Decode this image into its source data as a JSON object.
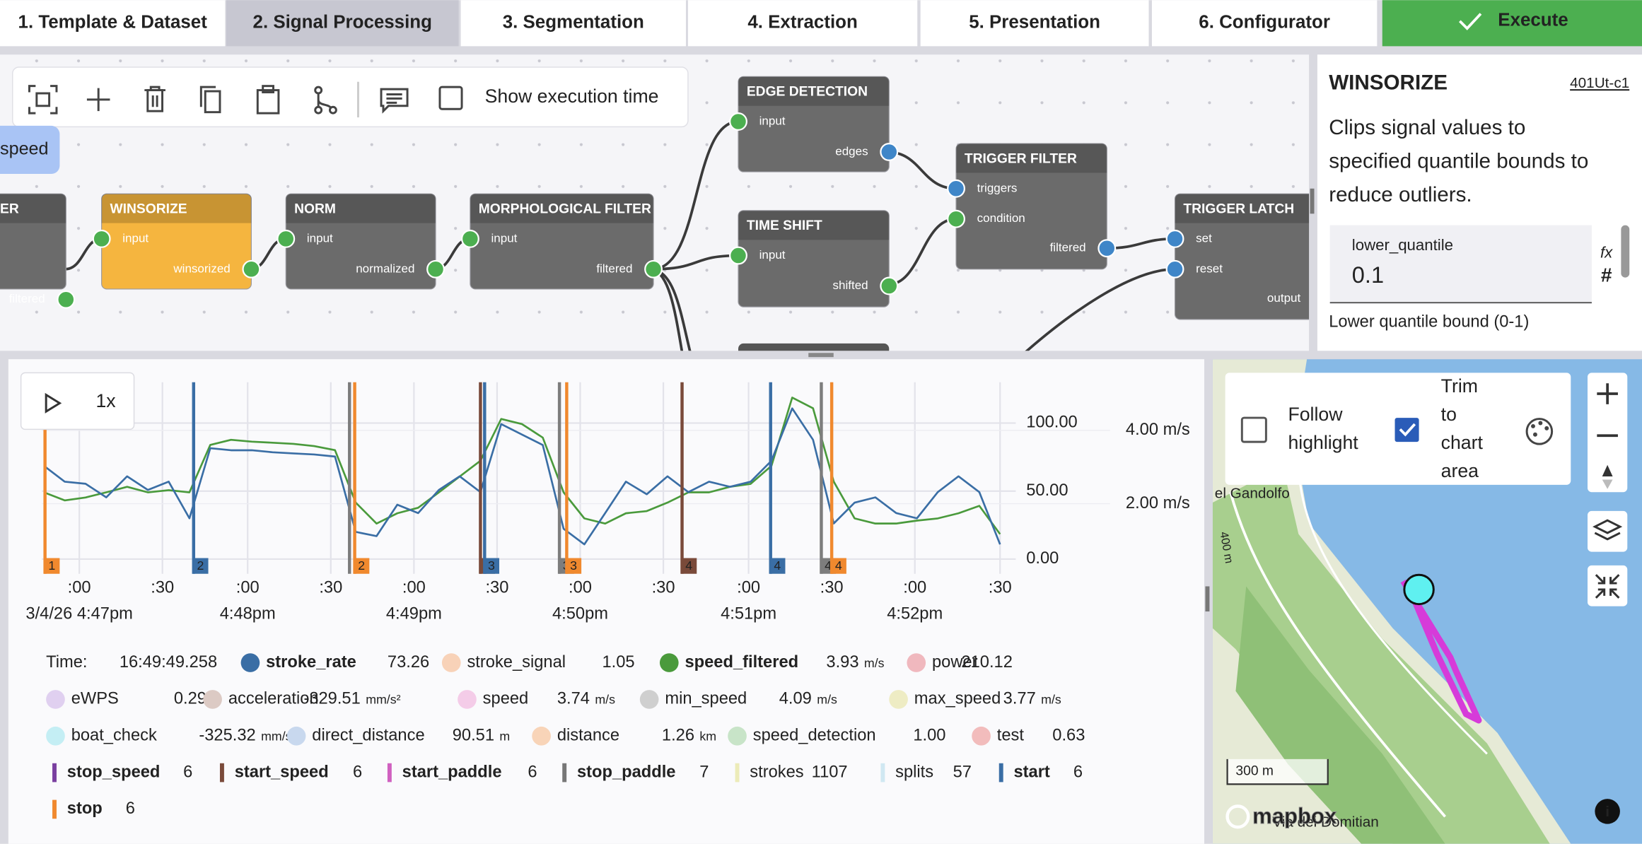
{
  "tabs": [
    "1. Template & Dataset",
    "2. Signal Processing",
    "3. Segmentation",
    "4. Extraction",
    "5. Presentation",
    "6. Configurator",
    "Execute"
  ],
  "active_tab": 1,
  "toolbar": {
    "show_execution_time": "Show execution time"
  },
  "chip": "speed",
  "nodes": [
    {
      "title": "ER",
      "color": "#6b6b6b",
      "inputs": [],
      "outputs": [
        {
          "label": "filtered",
          "color": "#4caf50"
        }
      ]
    },
    {
      "title": "WINSORIZE",
      "color": "#f5b53f",
      "inputs": [
        {
          "label": "input",
          "color": "#4caf50"
        }
      ],
      "outputs": [
        {
          "label": "winsorized",
          "color": "#4caf50"
        }
      ]
    },
    {
      "title": "NORM",
      "color": "#6b6b6b",
      "inputs": [
        {
          "label": "input",
          "color": "#4caf50"
        }
      ],
      "outputs": [
        {
          "label": "normalized",
          "color": "#4caf50"
        }
      ]
    },
    {
      "title": "MORPHOLOGICAL FILTER",
      "color": "#6b6b6b",
      "inputs": [
        {
          "label": "input",
          "color": "#4caf50"
        }
      ],
      "outputs": [
        {
          "label": "filtered",
          "color": "#4caf50"
        }
      ]
    },
    {
      "title": "EDGE DETECTION",
      "color": "#6b6b6b",
      "inputs": [
        {
          "label": "input",
          "color": "#4caf50"
        }
      ],
      "outputs": [
        {
          "label": "edges",
          "color": "#3f86c8"
        }
      ]
    },
    {
      "title": "TIME SHIFT",
      "color": "#6b6b6b",
      "inputs": [
        {
          "label": "input",
          "color": "#4caf50"
        }
      ],
      "outputs": [
        {
          "label": "shifted",
          "color": "#4caf50"
        }
      ]
    },
    {
      "title": "TRIGGER FILTER",
      "color": "#6b6b6b",
      "inputs": [
        {
          "label": "triggers",
          "color": "#3f86c8"
        },
        {
          "label": "condition",
          "color": "#4caf50"
        }
      ],
      "outputs": [
        {
          "label": "filtered",
          "color": "#3f86c8"
        }
      ]
    },
    {
      "title": "TRIGGER LATCH",
      "color": "#6b6b6b",
      "inputs": [
        {
          "label": "set",
          "color": "#3f86c8"
        },
        {
          "label": "reset",
          "color": "#3f86c8"
        }
      ],
      "outputs": [
        {
          "label": "output",
          "color": "#3f86c8"
        }
      ]
    }
  ],
  "side_panel": {
    "title": "WINSORIZE",
    "id": "401Ut-c1",
    "description": [
      "Clips signal values to",
      "specified quantile bounds to",
      "reduce outliers."
    ],
    "param_name": "lower_quantile",
    "param_value": "0.1",
    "fx": "fx",
    "hash": "#",
    "help": "Lower quantile bound (0-1)"
  },
  "player": {
    "speed": "1x"
  },
  "chart_data": {
    "type": "line",
    "xlim": [
      -0.1,
      46
    ],
    "xticks": [
      {
        "value": 1.7,
        "label": ":00"
      },
      {
        "value": 5.7,
        "label": ":30"
      },
      {
        "value": 9.8,
        "label": ":00"
      },
      {
        "value": 13.8,
        "label": ":30"
      },
      {
        "value": 17.8,
        "label": ":00"
      },
      {
        "value": 21.8,
        "label": ":30"
      },
      {
        "value": 25.8,
        "label": ":00"
      },
      {
        "value": 29.8,
        "label": ":30"
      },
      {
        "value": 33.9,
        "label": ":00"
      },
      {
        "value": 37.9,
        "label": ":30"
      },
      {
        "value": 41.9,
        "label": ":00"
      },
      {
        "value": 46,
        "label": ":30"
      }
    ],
    "date_labels": [
      {
        "value": 1.7,
        "label": "3/4/26 4:47pm"
      },
      {
        "value": 9.8,
        "label": "4:48pm"
      },
      {
        "value": 17.8,
        "label": "4:49pm"
      },
      {
        "value": 25.8,
        "label": "4:50pm"
      },
      {
        "value": 33.9,
        "label": "4:51pm"
      },
      {
        "value": 41.9,
        "label": "4:52pm"
      }
    ],
    "ylim": [
      -10.8,
      130
    ],
    "yticks": [
      {
        "value": 100,
        "label": "100.00"
      },
      {
        "value": 50,
        "label": "50.00"
      },
      {
        "value": 0,
        "label": "0.00"
      }
    ],
    "y2lim": [
      0.09,
      5.31
    ],
    "y2ticks": [
      {
        "value": 4,
        "label": "4.00 m/s"
      },
      {
        "value": 2,
        "label": "2.00 m/s"
      }
    ],
    "grid": true,
    "series": [
      {
        "color": "#3a6ea5",
        "values": [
          68.5,
          56.9,
          55.4,
          45.4,
          60.8,
          50.8,
          56.9,
          30.0,
          81.5,
          80.0,
          80.0,
          78.5,
          77.7,
          76.9,
          75.4,
          20.0,
          16.9,
          40.0,
          33.8,
          50.8,
          60.8,
          49.2,
          99.2,
          91.5,
          83.8,
          22.3,
          10.8,
          33.8,
          56.9,
          47.7,
          60.8,
          49.2,
          56.9,
          53.1,
          56.9,
          72.3,
          110.8,
          87.7,
          26.2,
          41.5,
          45.4,
          33.8,
          30.0,
          49.2,
          60.8,
          49.2,
          10.8
        ]
      },
      {
        "color": "#4a9a3c",
        "axis": "y2",
        "values": [
          2.31,
          2.09,
          2.17,
          2.31,
          2.46,
          2.31,
          2.37,
          2.31,
          3.6,
          3.74,
          3.69,
          3.66,
          3.63,
          3.57,
          3.46,
          2.03,
          1.46,
          1.74,
          1.89,
          2.31,
          2.74,
          3.17,
          4.31,
          4.17,
          3.8,
          2.31,
          1.6,
          1.46,
          1.74,
          1.8,
          2.03,
          2.31,
          2.31,
          2.46,
          2.54,
          3.03,
          4.89,
          4.6,
          2.6,
          1.6,
          1.46,
          1.46,
          1.54,
          1.6,
          1.74,
          1.94,
          1.17
        ]
      }
    ],
    "markers": [
      {
        "x": 0.05,
        "color": "#f0892e",
        "label": "1"
      },
      {
        "x": 7.2,
        "color": "#3a6ea5",
        "label": "2"
      },
      {
        "x": 14.7,
        "color": "#7d7d7d"
      },
      {
        "x": 14.95,
        "color": "#f0892e",
        "label": "2"
      },
      {
        "x": 21.0,
        "color": "#7a4a3a",
        "label": "3"
      },
      {
        "x": 21.2,
        "color": "#3a6ea5",
        "label": "3"
      },
      {
        "x": 24.8,
        "color": "#7d7d7d",
        "label": "3"
      },
      {
        "x": 25.15,
        "color": "#f0892e",
        "label": "3"
      },
      {
        "x": 30.7,
        "color": "#7a4a3a",
        "label": "4"
      },
      {
        "x": 34.96,
        "color": "#3a6ea5",
        "label": "4"
      },
      {
        "x": 37.4,
        "color": "#7d7d7d",
        "label": "4"
      },
      {
        "x": 37.9,
        "color": "#f0892e",
        "label": "4"
      }
    ]
  },
  "readout": {
    "time_label": "Time:",
    "time": "16:49:49.258",
    "rows": [
      [
        {
          "name": "stroke_rate",
          "value": "73.26",
          "color": "#3a6ea5",
          "dim": false
        },
        {
          "name": "stroke_signal",
          "value": "1.05",
          "color": "#f8d2b8",
          "dim": true
        },
        {
          "name": "speed_filtered",
          "value": "3.93",
          "unit": "m/s",
          "color": "#4a9a3c",
          "dim": false
        },
        {
          "name": "power",
          "value": "210.12",
          "color": "#f0b8be",
          "dim": true
        }
      ],
      [
        {
          "name": "eWPS",
          "value": "0.29",
          "color": "#e0d0f0",
          "dim": true
        },
        {
          "name": "acceleration",
          "value": "-329.51",
          "unit": "mm/s²",
          "color": "#dccac4",
          "dim": true
        },
        {
          "name": "speed",
          "value": "3.74",
          "unit": "m/s",
          "color": "#f4cce8",
          "dim": true
        },
        {
          "name": "min_speed",
          "value": "4.09",
          "unit": "m/s",
          "color": "#cfcfcf",
          "dim": true
        },
        {
          "name": "max_speed",
          "value": "3.77",
          "unit": "m/s",
          "color": "#eeecc4",
          "dim": true
        }
      ],
      [
        {
          "name": "boat_check",
          "value": "-325.32",
          "unit": "mm/s",
          "color": "#c4eef4",
          "dim": true
        },
        {
          "name": "direct_distance",
          "value": "90.51",
          "unit": "m",
          "color": "#c8d8ee",
          "dim": true
        },
        {
          "name": "distance",
          "value": "1.26",
          "unit": "km",
          "color": "#f8d4b8",
          "dim": true
        },
        {
          "name": "speed_detection",
          "value": "1.00",
          "color": "#c8e4c8",
          "dim": true
        },
        {
          "name": "test",
          "value": "0.63",
          "color": "#f2bcbc",
          "dim": true
        }
      ],
      [
        {
          "name": "stop_speed",
          "value": "6",
          "color": "#7a3fa0",
          "dim": false,
          "shape": "bar"
        },
        {
          "name": "start_speed",
          "value": "6",
          "color": "#7a4a3a",
          "dim": false,
          "shape": "bar"
        },
        {
          "name": "start_paddle",
          "value": "6",
          "color": "#d060c0",
          "dim": false,
          "shape": "bar"
        },
        {
          "name": "stop_paddle",
          "value": "7",
          "color": "#777777",
          "dim": false,
          "shape": "bar"
        },
        {
          "name": "strokes",
          "value": "1107",
          "color": "#ecebb8",
          "dim": true,
          "shape": "bar"
        },
        {
          "name": "splits",
          "value": "57",
          "color": "#d0e8f2",
          "dim": true,
          "shape": "bar"
        },
        {
          "name": "start",
          "value": "6",
          "color": "#3a6ea5",
          "dim": false,
          "shape": "bar"
        }
      ],
      [
        {
          "name": "stop",
          "value": "6",
          "color": "#f0892e",
          "dim": false,
          "shape": "bar"
        }
      ]
    ]
  },
  "map": {
    "follow": [
      "Follow",
      "highlight"
    ],
    "follow_checked": false,
    "trim": [
      "Trim",
      "to",
      "chart",
      "area"
    ],
    "trim_checked": true,
    "scale": "300 m",
    "logo": "mapbox",
    "labels": [
      "el Gandolfo",
      "400 m",
      "Via dei Domitian"
    ]
  }
}
